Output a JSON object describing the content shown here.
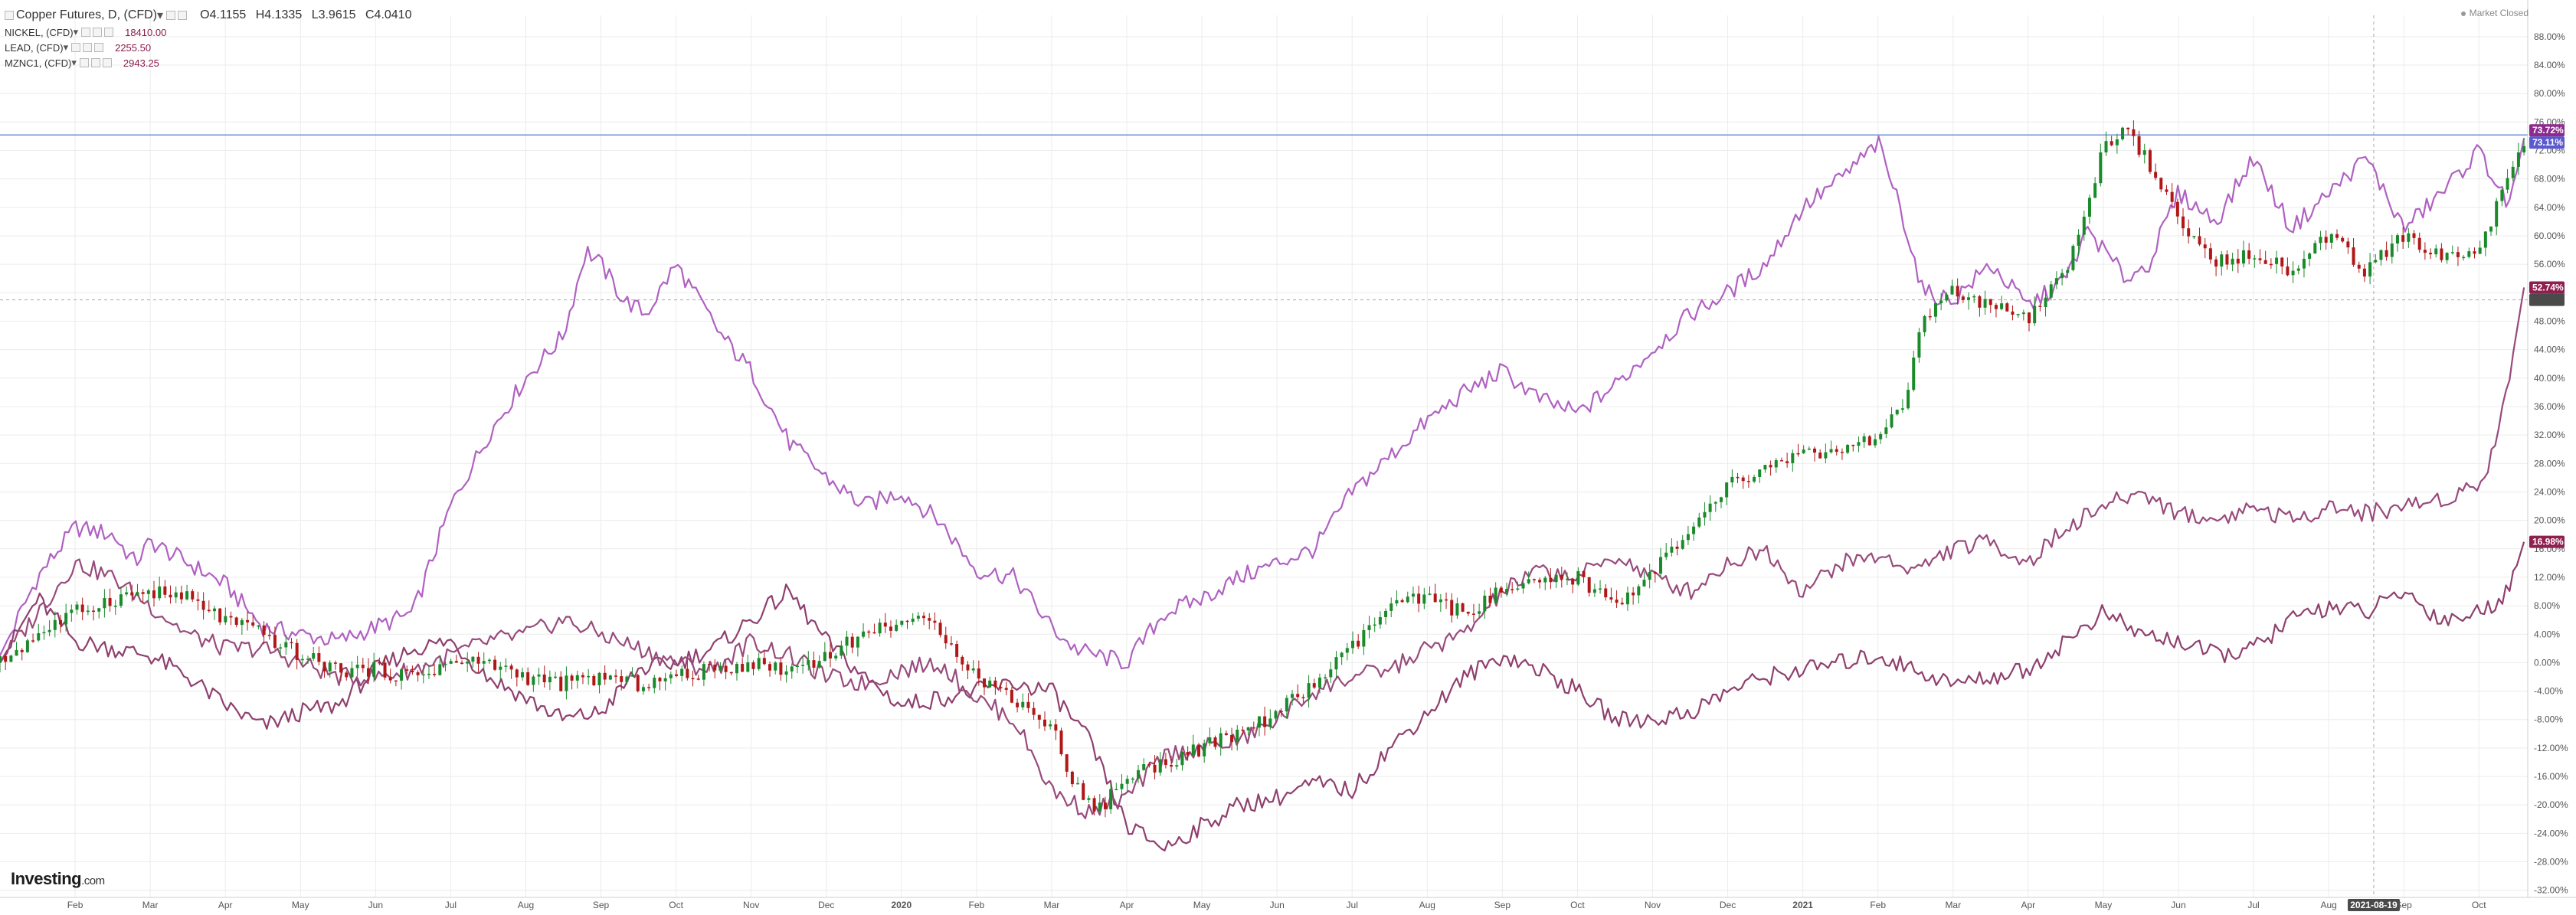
{
  "header": {
    "title": "Copper Futures, D, (CFD)",
    "ohlc": {
      "open": "O4.1155",
      "high": "H4.1335",
      "low": "L3.9615",
      "close": "C4.0410"
    },
    "comparisons": [
      {
        "symbol": "NICKEL, (CFD)",
        "value": "18410.00"
      },
      {
        "symbol": "LEAD, (CFD)",
        "value": "2255.50"
      },
      {
        "symbol": "MZNC1, (CFD)",
        "value": "2943.25"
      }
    ],
    "market_status": "Market Closed"
  },
  "logo": {
    "brand": "Investing",
    "domain": ".com"
  },
  "colors": {
    "nickel": "#b061c2",
    "lead": "#8f3f6e",
    "zinc": "#984a7c",
    "up": "#1a8a2a",
    "down": "#b01818",
    "grid": "#ececec",
    "hline": "#6d8fd6"
  },
  "chart_data": {
    "type": "line",
    "title": "Copper Futures, D, (CFD)",
    "xlabel": "",
    "ylabel": "",
    "y_unit": "percent change",
    "ylim": [
      -33,
      91
    ],
    "y_ticks": [
      "88.00%",
      "84.00%",
      "80.00%",
      "76.00%",
      "72.00%",
      "68.00%",
      "64.00%",
      "60.00%",
      "56.00%",
      "52.00%",
      "48.00%",
      "44.00%",
      "40.00%",
      "36.00%",
      "32.00%",
      "28.00%",
      "24.00%",
      "20.00%",
      "16.00%",
      "12.00%",
      "8.00%",
      "4.00%",
      "0.00%",
      "-4.00%",
      "-8.00%",
      "-12.00%",
      "-16.00%",
      "-20.00%",
      "-24.00%",
      "-28.00%",
      "-32.00%"
    ],
    "x_ticks": [
      "Feb",
      "Mar",
      "Apr",
      "May",
      "Jun",
      "Jul",
      "Aug",
      "Sep",
      "Oct",
      "Nov",
      "Dec",
      "2020",
      "Feb",
      "Mar",
      "Apr",
      "May",
      "Jun",
      "Jul",
      "Aug",
      "Sep",
      "Oct",
      "Nov",
      "Dec",
      "2021",
      "Feb",
      "Mar",
      "Apr",
      "May",
      "Jun",
      "Jul",
      "Aug",
      "Sep",
      "Oct"
    ],
    "x_tick_pos": [
      1.0,
      2.0,
      3.0,
      4.0,
      5.0,
      6.0,
      7.0,
      8.0,
      9.0,
      10.0,
      11.0,
      12.0,
      13.0,
      14.0,
      15.0,
      16.0,
      17.0,
      18.0,
      19.0,
      20.0,
      21.0,
      22.0,
      23.0,
      24.0,
      25.0,
      26.0,
      27.0,
      28.0,
      29.0,
      30.0,
      31.0,
      32.0,
      33.0
    ],
    "x_range": [
      0,
      33.65
    ],
    "crosshair_date": "2021-08-19",
    "crosshair_x": 31.6,
    "crosshair_y": 51.0,
    "series": [
      {
        "name": "NICKEL, (CFD)",
        "key": "nickel",
        "last_label": "73.72%",
        "x": [
          0,
          0.5,
          1.0,
          1.5,
          1.8,
          2.0,
          2.5,
          3.0,
          3.5,
          4.0,
          4.5,
          5.0,
          5.5,
          6.0,
          6.5,
          7.0,
          7.5,
          7.8,
          8.0,
          8.3,
          8.6,
          9.0,
          9.3,
          9.6,
          10.0,
          10.5,
          11.0,
          11.5,
          12.0,
          12.5,
          13.0,
          13.5,
          14.0,
          14.3,
          14.6,
          15.0,
          15.5,
          16.0,
          16.5,
          17.0,
          17.5,
          18.0,
          18.5,
          19.0,
          19.5,
          20.0,
          20.5,
          21.0,
          21.5,
          22.0,
          22.5,
          23.0,
          23.5,
          24.0,
          24.5,
          25.0,
          25.3,
          25.6,
          26.0,
          26.5,
          27.0,
          27.5,
          27.8,
          28.0,
          28.3,
          28.6,
          29.0,
          29.5,
          30.0,
          30.5,
          31.0,
          31.5,
          32.0,
          32.5,
          33.0,
          33.4,
          33.6
        ],
        "y": [
          1,
          12,
          19,
          18,
          14,
          17,
          14,
          11,
          5,
          4,
          3,
          5,
          7,
          22,
          32,
          40,
          46,
          58,
          56,
          51,
          49,
          56,
          51,
          46,
          41,
          31,
          26,
          22,
          24,
          20,
          13,
          12,
          5,
          2,
          1,
          0,
          7,
          9,
          12,
          14,
          16,
          24,
          29,
          34,
          38,
          41,
          37,
          35,
          39,
          44,
          49,
          52,
          56,
          64,
          68,
          73,
          64,
          52,
          51,
          56,
          50,
          54,
          61,
          58,
          54,
          56,
          66,
          62,
          71,
          61,
          66,
          71,
          61,
          66,
          72,
          64,
          73.7
        ]
      },
      {
        "name": "LEAD, (CFD)",
        "key": "lead",
        "last_label": "16.98%",
        "x": [
          0,
          0.5,
          1.0,
          1.5,
          2.0,
          2.5,
          3.0,
          3.5,
          4.0,
          4.5,
          5.0,
          5.5,
          6.0,
          6.5,
          7.0,
          7.5,
          8.0,
          8.5,
          9.0,
          9.5,
          10.0,
          10.5,
          11.0,
          11.5,
          12.0,
          12.5,
          13.0,
          13.5,
          14.0,
          14.5,
          15.0,
          15.5,
          16.0,
          16.5,
          17.0,
          17.5,
          18.0,
          18.5,
          19.0,
          19.5,
          20.0,
          20.5,
          21.0,
          21.5,
          22.0,
          22.5,
          23.0,
          23.5,
          24.0,
          24.5,
          25.0,
          25.5,
          26.0,
          26.5,
          27.0,
          27.5,
          28.0,
          28.5,
          29.0,
          29.5,
          30.0,
          30.5,
          31.0,
          31.5,
          32.0,
          32.5,
          33.0,
          33.4,
          33.6
        ],
        "y": [
          0,
          9,
          3,
          2,
          1,
          -2,
          -6,
          -9,
          -7,
          -6,
          -1,
          2,
          3,
          -2,
          -5,
          -8,
          -7,
          -1,
          0,
          2,
          6,
          10,
          3,
          -2,
          -6,
          -5,
          -4,
          -3,
          -4,
          -11,
          -23,
          -26,
          -23,
          -20,
          -19,
          -17,
          -18,
          -12,
          -7,
          -2,
          1,
          -1,
          -4,
          -8,
          -8,
          -7,
          -4,
          -2,
          -1,
          0,
          1,
          -1,
          -3,
          -2,
          -1,
          3,
          7,
          4,
          3,
          1,
          2,
          6,
          8,
          7,
          10,
          6,
          7,
          10,
          16.98
        ]
      },
      {
        "name": "MZNC1, (CFD)",
        "key": "zinc",
        "last_label": "52.74%",
        "x": [
          0,
          0.5,
          1.0,
          1.5,
          2.0,
          2.5,
          3.0,
          3.5,
          4.0,
          4.5,
          5.0,
          5.5,
          6.0,
          6.5,
          7.0,
          7.5,
          8.0,
          8.5,
          9.0,
          9.5,
          10.0,
          10.5,
          11.0,
          11.5,
          12.0,
          12.5,
          13.0,
          13.5,
          14.0,
          14.5,
          15.0,
          15.5,
          16.0,
          16.5,
          17.0,
          17.5,
          18.0,
          18.5,
          19.0,
          19.5,
          20.0,
          20.5,
          21.0,
          21.5,
          22.0,
          22.5,
          23.0,
          23.5,
          24.0,
          24.5,
          25.0,
          25.5,
          26.0,
          26.5,
          27.0,
          27.5,
          28.0,
          28.5,
          29.0,
          29.5,
          30.0,
          30.5,
          31.0,
          31.5,
          32.0,
          32.5,
          33.0,
          33.2,
          33.4,
          33.6
        ],
        "y": [
          0,
          7,
          14,
          12,
          8,
          4,
          2,
          2,
          0,
          -2,
          -2,
          -1,
          1,
          3,
          4,
          6,
          4,
          2,
          0,
          -1,
          3,
          1,
          -2,
          -3,
          -1,
          0,
          -5,
          -8,
          -18,
          -21,
          -19,
          -13,
          -12,
          -11,
          -8,
          -4,
          -2,
          -1,
          2,
          4,
          10,
          13,
          12,
          15,
          12,
          10,
          14,
          16,
          10,
          14,
          15,
          13,
          16,
          17,
          14,
          19,
          22,
          24,
          21,
          20,
          22,
          20,
          22,
          21,
          22,
          23,
          25,
          30,
          40,
          52.74
        ]
      },
      {
        "name": "Copper Futures, D, (CFD)",
        "key": "copper",
        "last_label": "73.11%",
        "x": [
          0,
          0.5,
          1.0,
          1.5,
          2.0,
          2.5,
          3.0,
          3.5,
          4.0,
          4.5,
          5.0,
          5.5,
          6.0,
          6.5,
          7.0,
          7.5,
          8.0,
          8.5,
          9.0,
          9.5,
          10.0,
          10.5,
          11.0,
          11.5,
          12.0,
          12.5,
          13.0,
          13.5,
          14.0,
          14.3,
          14.6,
          15.0,
          15.5,
          16.0,
          16.5,
          17.0,
          17.5,
          18.0,
          18.5,
          19.0,
          19.5,
          20.0,
          20.5,
          21.0,
          21.5,
          22.0,
          22.5,
          23.0,
          23.5,
          24.0,
          24.5,
          25.0,
          25.3,
          25.6,
          26.0,
          26.5,
          27.0,
          27.5,
          28.0,
          28.3,
          28.6,
          29.0,
          29.5,
          30.0,
          30.5,
          31.0,
          31.5,
          32.0,
          32.5,
          33.0,
          33.3,
          33.6
        ],
        "y": [
          0,
          4,
          7,
          9,
          10,
          9,
          6,
          4,
          1,
          -1,
          -1,
          -2,
          0,
          0,
          -2,
          -3,
          -2,
          -3,
          -2,
          -1,
          0,
          -1,
          1,
          4,
          6,
          5,
          -2,
          -5,
          -9,
          -17,
          -21,
          -16,
          -14,
          -12,
          -10,
          -7,
          -3,
          2,
          8,
          9,
          7,
          10,
          11,
          12,
          8,
          13,
          18,
          25,
          27,
          30,
          29,
          32,
          35,
          48,
          52,
          50,
          48,
          55,
          72,
          76,
          70,
          62,
          56,
          58,
          55,
          60,
          55,
          60,
          57,
          58,
          66,
          73.11
        ]
      }
    ]
  }
}
